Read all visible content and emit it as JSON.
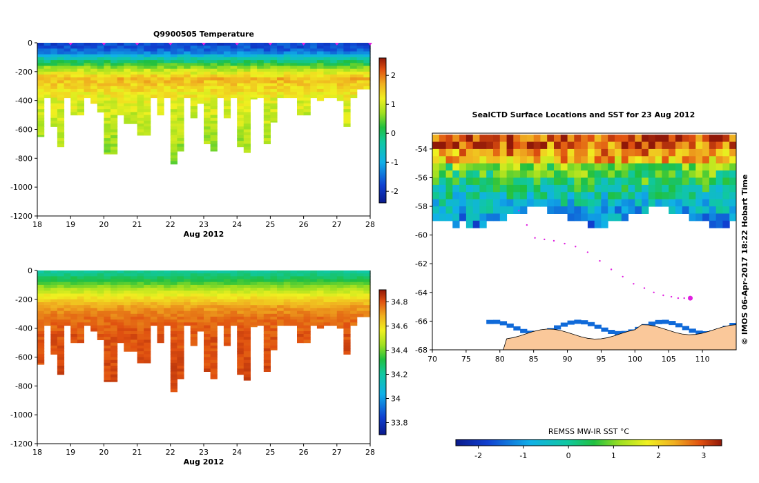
{
  "chart_data": [
    {
      "type": "heatmap",
      "title": "Q9900505  Temperature",
      "xlabel": "Aug 2012",
      "x_ticks": [
        "18",
        "19",
        "20",
        "21",
        "22",
        "23",
        "24",
        "25",
        "26",
        "27",
        "28"
      ],
      "xlim": [
        18,
        28
      ],
      "y_ticks": [
        "0",
        "-200",
        "-400",
        "-600",
        "-800",
        "-1000",
        "-1200"
      ],
      "ylim": [
        -1200,
        0
      ],
      "colorbar_ticks": [
        "2",
        "1",
        "0",
        "-1",
        "-2"
      ],
      "colorbar_range": [
        -2.4,
        2.6
      ],
      "profile_times": [
        18.2,
        18.4,
        18.6,
        18.8,
        19.0,
        19.2,
        19.4,
        19.6,
        19.8,
        20.0,
        20.2,
        20.4,
        20.6,
        20.8,
        21.0,
        21.2,
        21.4,
        21.6,
        21.8,
        22.0,
        22.2,
        22.4,
        22.6,
        22.8,
        23.0,
        23.2,
        23.4,
        23.6,
        23.8,
        24.0,
        24.2,
        24.4,
        24.6,
        24.8,
        25.0,
        25.2,
        25.4,
        25.6,
        25.8,
        26.0,
        26.2,
        26.4,
        26.6,
        26.8,
        27.0,
        27.2,
        27.4,
        27.6,
        27.8,
        28.0
      ],
      "profile_max_depth": [
        650,
        380,
        580,
        720,
        380,
        500,
        500,
        380,
        420,
        480,
        770,
        770,
        500,
        560,
        560,
        640,
        640,
        380,
        500,
        380,
        840,
        750,
        380,
        520,
        420,
        700,
        750,
        380,
        520,
        380,
        720,
        760,
        390,
        380,
        700,
        550,
        380,
        380,
        380,
        500,
        500,
        380,
        400,
        380,
        380,
        400,
        580,
        380,
        320,
        320
      ],
      "temperature_bands_depth": [
        0,
        60,
        120,
        180,
        250,
        400,
        800
      ],
      "temperature_bands_values": [
        -1.8,
        -1.5,
        -0.2,
        0.8,
        1.6,
        1.1,
        0.6
      ],
      "surface_markers": [
        19,
        20,
        21,
        22,
        23,
        24,
        25,
        26,
        27,
        28
      ]
    },
    {
      "type": "heatmap",
      "title": "",
      "xlabel": "Aug 2012",
      "x_ticks": [
        "18",
        "19",
        "20",
        "21",
        "22",
        "23",
        "24",
        "25",
        "26",
        "27",
        "28"
      ],
      "xlim": [
        18,
        28
      ],
      "y_ticks": [
        "0",
        "-200",
        "-400",
        "-600",
        "-800",
        "-1000",
        "-1200"
      ],
      "ylim": [
        -1200,
        0
      ],
      "colorbar_ticks": [
        "34.8",
        "34.6",
        "34.4",
        "34.2",
        "34",
        "33.8"
      ],
      "colorbar_range": [
        33.7,
        34.9
      ],
      "salinity_bands_depth": [
        0,
        60,
        120,
        180,
        250,
        320,
        450,
        800
      ],
      "salinity_bands_values": [
        34.2,
        34.3,
        34.45,
        34.58,
        34.7,
        34.76,
        34.8,
        34.82
      ]
    },
    {
      "type": "heatmap",
      "title": "SealCTD Surface Locations and SST for 23 Aug 2012",
      "x_ticks": [
        "70",
        "75",
        "80",
        "85",
        "90",
        "95",
        "100",
        "105",
        "110"
      ],
      "xlim": [
        70,
        115
      ],
      "y_ticks": [
        "-54",
        "-56",
        "-58",
        "-60",
        "-62",
        "-64",
        "-66",
        "-68"
      ],
      "ylim": [
        -68,
        -52.9
      ],
      "colorbar_label": "REMSS MW-IR SST °C",
      "colorbar_ticks": [
        "-2",
        "-1",
        "0",
        "1",
        "2",
        "3"
      ],
      "colorbar_range": [
        -2.5,
        3.4
      ],
      "side_label": "©  IMOS 06-Apr-2017 18:22 Hobart Time",
      "track_lon": [
        82.8,
        84.0,
        85.2,
        86.6,
        88.0,
        89.6,
        91.2,
        93.0,
        94.8,
        96.5,
        98.2,
        99.8,
        101.4,
        102.8,
        104.2,
        105.4,
        106.4,
        107.3,
        108.0
      ],
      "track_lat": [
        -58.3,
        -59.3,
        -60.2,
        -60.3,
        -60.4,
        -60.6,
        -60.8,
        -61.2,
        -61.8,
        -62.4,
        -62.9,
        -63.4,
        -63.7,
        -64.0,
        -64.2,
        -64.3,
        -64.4,
        -64.4,
        -64.4
      ],
      "current_position": {
        "lon": 108.2,
        "lat": -64.4
      },
      "land_color": "#fac89a"
    }
  ]
}
